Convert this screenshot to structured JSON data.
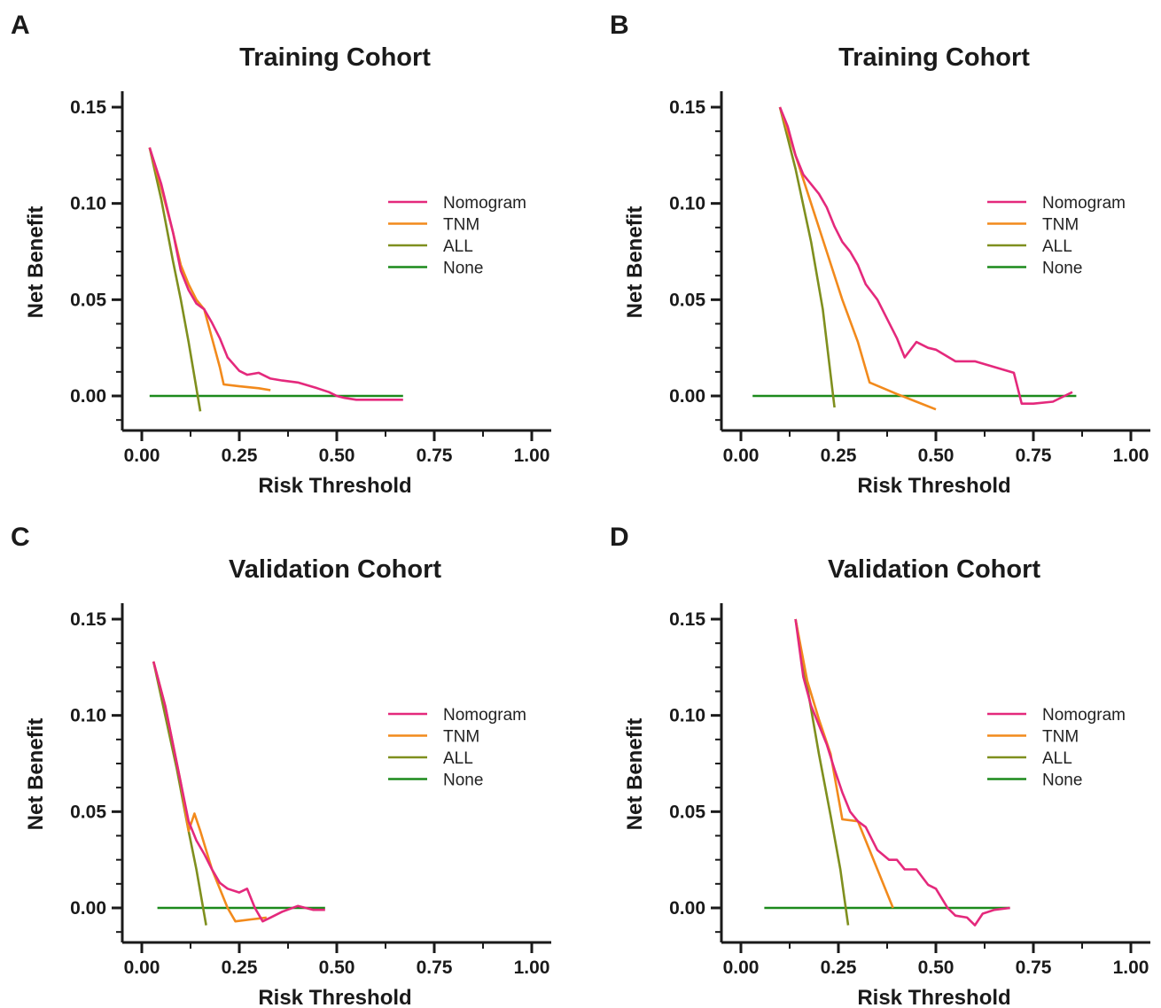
{
  "colors": {
    "Nomogram": "#e4297c",
    "TNM": "#f28a1c",
    "ALL": "#7f8f1e",
    "None": "#1c8a1c",
    "axis": "#1a1a1a"
  },
  "chart_data": [
    {
      "type": "line",
      "panel": "A",
      "title": "Training Cohort",
      "xlabel": "Risk Threshold",
      "ylabel": "Net Benefit",
      "xlim": [
        0,
        1
      ],
      "ylim": [
        -0.017,
        0.16
      ],
      "xticks": [
        "0.00",
        "0.25",
        "0.50",
        "0.75",
        "1.00"
      ],
      "yticks": [
        "0.00",
        "0.05",
        "0.10",
        "0.15"
      ],
      "legend": [
        "Nomogram",
        "TNM",
        "ALL",
        "None"
      ],
      "legend_position": "right",
      "series": [
        {
          "name": "Nomogram",
          "x": [
            0.02,
            0.05,
            0.08,
            0.1,
            0.12,
            0.14,
            0.16,
            0.18,
            0.2,
            0.22,
            0.25,
            0.27,
            0.3,
            0.33,
            0.36,
            0.4,
            0.45,
            0.48,
            0.5,
            0.52,
            0.55,
            0.6,
            0.65,
            0.67
          ],
          "y": [
            0.129,
            0.11,
            0.085,
            0.065,
            0.055,
            0.048,
            0.045,
            0.038,
            0.03,
            0.02,
            0.013,
            0.011,
            0.012,
            0.009,
            0.008,
            0.007,
            0.004,
            0.002,
            0.0,
            -0.001,
            -0.002,
            -0.002,
            -0.002,
            -0.002
          ]
        },
        {
          "name": "TNM",
          "x": [
            0.02,
            0.05,
            0.08,
            0.1,
            0.12,
            0.14,
            0.16,
            0.18,
            0.2,
            0.21,
            0.25,
            0.3,
            0.33
          ],
          "y": [
            0.129,
            0.108,
            0.085,
            0.068,
            0.058,
            0.05,
            0.045,
            0.03,
            0.015,
            0.006,
            0.005,
            0.004,
            0.003
          ]
        },
        {
          "name": "ALL",
          "x": [
            0.02,
            0.05,
            0.08,
            0.1,
            0.12,
            0.15
          ],
          "y": [
            0.129,
            0.102,
            0.07,
            0.05,
            0.028,
            -0.008
          ]
        },
        {
          "name": "None",
          "x": [
            0.02,
            0.67
          ],
          "y": [
            0.0,
            0.0
          ]
        }
      ]
    },
    {
      "type": "line",
      "panel": "B",
      "title": "Training Cohort",
      "xlabel": "Risk Threshold",
      "ylabel": "Net Benefit",
      "xlim": [
        0,
        1
      ],
      "ylim": [
        -0.017,
        0.16
      ],
      "xticks": [
        "0.00",
        "0.25",
        "0.50",
        "0.75",
        "1.00"
      ],
      "yticks": [
        "0.00",
        "0.05",
        "0.10",
        "0.15"
      ],
      "legend": [
        "Nomogram",
        "TNM",
        "ALL",
        "None"
      ],
      "legend_position": "right",
      "series": [
        {
          "name": "Nomogram",
          "x": [
            0.1,
            0.12,
            0.14,
            0.16,
            0.18,
            0.2,
            0.22,
            0.24,
            0.26,
            0.28,
            0.3,
            0.32,
            0.35,
            0.38,
            0.4,
            0.42,
            0.45,
            0.48,
            0.5,
            0.55,
            0.6,
            0.65,
            0.7,
            0.71,
            0.72,
            0.75,
            0.8,
            0.83,
            0.85
          ],
          "y": [
            0.15,
            0.14,
            0.125,
            0.115,
            0.11,
            0.105,
            0.098,
            0.088,
            0.08,
            0.075,
            0.068,
            0.058,
            0.05,
            0.038,
            0.03,
            0.02,
            0.028,
            0.025,
            0.024,
            0.018,
            0.018,
            0.015,
            0.012,
            0.004,
            -0.004,
            -0.004,
            -0.003,
            0.0,
            0.002
          ]
        },
        {
          "name": "TNM",
          "x": [
            0.1,
            0.14,
            0.18,
            0.22,
            0.26,
            0.3,
            0.33,
            0.4,
            0.45,
            0.5
          ],
          "y": [
            0.15,
            0.125,
            0.1,
            0.075,
            0.05,
            0.028,
            0.007,
            0.001,
            -0.003,
            -0.007
          ]
        },
        {
          "name": "ALL",
          "x": [
            0.1,
            0.14,
            0.18,
            0.21,
            0.24
          ],
          "y": [
            0.15,
            0.118,
            0.08,
            0.045,
            -0.006
          ]
        },
        {
          "name": "None",
          "x": [
            0.03,
            0.86
          ],
          "y": [
            0.0,
            0.0
          ]
        }
      ]
    },
    {
      "type": "line",
      "panel": "C",
      "title": "Validation Cohort",
      "xlabel": "Risk Threshold",
      "ylabel": "Net Benefit",
      "xlim": [
        0,
        1
      ],
      "ylim": [
        -0.017,
        0.16
      ],
      "xticks": [
        "0.00",
        "0.25",
        "0.50",
        "0.75",
        "1.00"
      ],
      "yticks": [
        "0.00",
        "0.05",
        "0.10",
        "0.15"
      ],
      "legend": [
        "Nomogram",
        "TNM",
        "ALL",
        "None"
      ],
      "legend_position": "right",
      "series": [
        {
          "name": "Nomogram",
          "x": [
            0.03,
            0.06,
            0.08,
            0.1,
            0.12,
            0.14,
            0.16,
            0.18,
            0.2,
            0.22,
            0.25,
            0.27,
            0.29,
            0.31,
            0.33,
            0.36,
            0.4,
            0.44,
            0.47
          ],
          "y": [
            0.128,
            0.105,
            0.085,
            0.065,
            0.045,
            0.035,
            0.028,
            0.02,
            0.013,
            0.01,
            0.008,
            0.01,
            0.0,
            -0.007,
            -0.005,
            -0.002,
            0.001,
            -0.001,
            -0.001
          ]
        },
        {
          "name": "TNM",
          "x": [
            0.03,
            0.06,
            0.08,
            0.1,
            0.12,
            0.135,
            0.15,
            0.18,
            0.22,
            0.24,
            0.28,
            0.32
          ],
          "y": [
            0.128,
            0.105,
            0.085,
            0.065,
            0.04,
            0.049,
            0.04,
            0.02,
            0.0,
            -0.007,
            -0.006,
            -0.005
          ]
        },
        {
          "name": "ALL",
          "x": [
            0.03,
            0.06,
            0.09,
            0.12,
            0.14,
            0.165
          ],
          "y": [
            0.128,
            0.1,
            0.072,
            0.04,
            0.02,
            -0.009
          ]
        },
        {
          "name": "None",
          "x": [
            0.04,
            0.47
          ],
          "y": [
            0.0,
            0.0
          ]
        }
      ]
    },
    {
      "type": "line",
      "panel": "D",
      "title": "Validation Cohort",
      "xlabel": "Risk Threshold",
      "ylabel": "Net Benefit",
      "xlim": [
        0,
        1
      ],
      "ylim": [
        -0.017,
        0.16
      ],
      "xticks": [
        "0.00",
        "0.25",
        "0.50",
        "0.75",
        "1.00"
      ],
      "yticks": [
        "0.00",
        "0.05",
        "0.10",
        "0.15"
      ],
      "legend": [
        "Nomogram",
        "TNM",
        "ALL",
        "None"
      ],
      "legend_position": "right",
      "series": [
        {
          "name": "Nomogram",
          "x": [
            0.14,
            0.16,
            0.18,
            0.2,
            0.22,
            0.24,
            0.26,
            0.28,
            0.3,
            0.32,
            0.35,
            0.38,
            0.4,
            0.42,
            0.45,
            0.48,
            0.5,
            0.53,
            0.55,
            0.58,
            0.6,
            0.62,
            0.65,
            0.69
          ],
          "y": [
            0.15,
            0.12,
            0.105,
            0.095,
            0.085,
            0.072,
            0.06,
            0.05,
            0.045,
            0.042,
            0.03,
            0.025,
            0.025,
            0.02,
            0.02,
            0.012,
            0.01,
            0.0,
            -0.004,
            -0.005,
            -0.009,
            -0.003,
            -0.001,
            0.0
          ]
        },
        {
          "name": "TNM",
          "x": [
            0.14,
            0.17,
            0.2,
            0.23,
            0.26,
            0.3,
            0.33,
            0.36,
            0.39
          ],
          "y": [
            0.15,
            0.118,
            0.098,
            0.08,
            0.046,
            0.045,
            0.03,
            0.015,
            0.0
          ]
        },
        {
          "name": "ALL",
          "x": [
            0.14,
            0.17,
            0.2,
            0.23,
            0.255,
            0.275
          ],
          "y": [
            0.15,
            0.115,
            0.08,
            0.048,
            0.02,
            -0.009
          ]
        },
        {
          "name": "None",
          "x": [
            0.06,
            0.69
          ],
          "y": [
            0.0,
            0.0
          ]
        }
      ]
    }
  ]
}
